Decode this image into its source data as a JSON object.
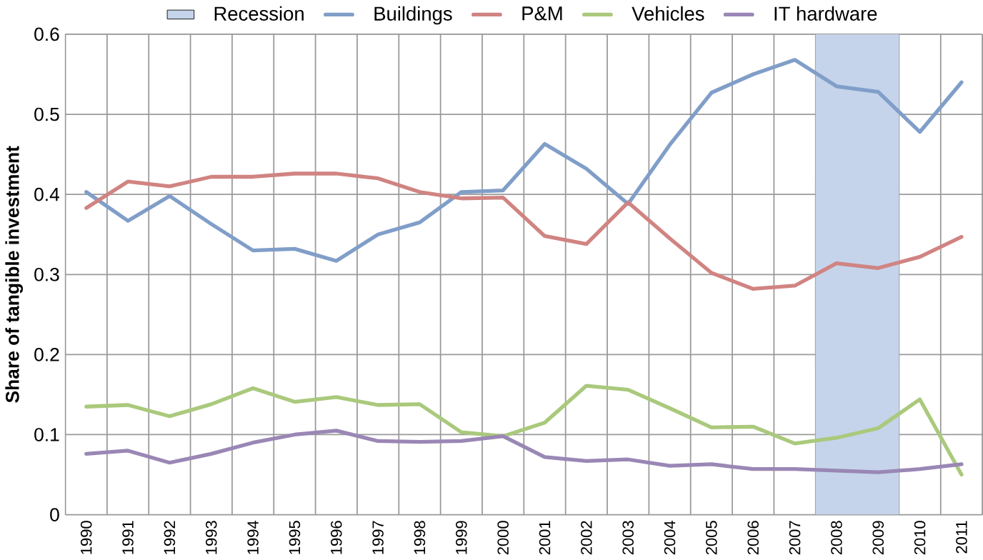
{
  "chart_data": {
    "type": "line",
    "ylabel": "Share of tangible investment",
    "categories": [
      "1990",
      "1991",
      "1992",
      "1993",
      "1994",
      "1995",
      "1996",
      "1997",
      "1998",
      "1999",
      "2000",
      "2001",
      "2002",
      "2003",
      "2004",
      "2005",
      "2006",
      "2007",
      "2008",
      "2009",
      "2010",
      "2011"
    ],
    "series": [
      {
        "name": "Buildings",
        "color": "#809ec8",
        "values": [
          0.403,
          0.367,
          0.398,
          0.363,
          0.33,
          0.332,
          0.317,
          0.35,
          0.365,
          0.403,
          0.405,
          0.463,
          0.432,
          0.388,
          0.462,
          0.527,
          0.55,
          0.568,
          0.535,
          0.528,
          0.478,
          0.54
        ]
      },
      {
        "name": "P&M",
        "color": "#d08482",
        "values": [
          0.383,
          0.416,
          0.41,
          0.422,
          0.422,
          0.426,
          0.426,
          0.42,
          0.403,
          0.395,
          0.396,
          0.348,
          0.338,
          0.39,
          0.345,
          0.302,
          0.282,
          0.286,
          0.314,
          0.308,
          0.322,
          0.347
        ]
      },
      {
        "name": "Vehicles",
        "color": "#aac97c",
        "values": [
          0.135,
          0.137,
          0.123,
          0.138,
          0.158,
          0.141,
          0.147,
          0.137,
          0.138,
          0.103,
          0.098,
          0.115,
          0.161,
          0.156,
          0.133,
          0.109,
          0.11,
          0.089,
          0.096,
          0.108,
          0.144,
          0.05
        ]
      },
      {
        "name": "IT hardware",
        "color": "#9a87b5",
        "values": [
          0.076,
          0.08,
          0.065,
          0.076,
          0.09,
          0.1,
          0.105,
          0.092,
          0.091,
          0.092,
          0.098,
          0.072,
          0.067,
          0.069,
          0.061,
          0.063,
          0.057,
          0.057,
          0.055,
          0.053,
          0.057,
          0.063
        ]
      }
    ],
    "bands": [
      {
        "axis": "x",
        "from": "2008",
        "to": "2009",
        "label": "Recession",
        "color": "#c5d4ea"
      }
    ],
    "ylim": [
      0,
      0.6
    ],
    "yticks": [
      0,
      0.1,
      0.2,
      0.3,
      0.4,
      0.5,
      0.6
    ],
    "grid": true,
    "legend": "top",
    "marker": "none",
    "line_style": "solid"
  }
}
